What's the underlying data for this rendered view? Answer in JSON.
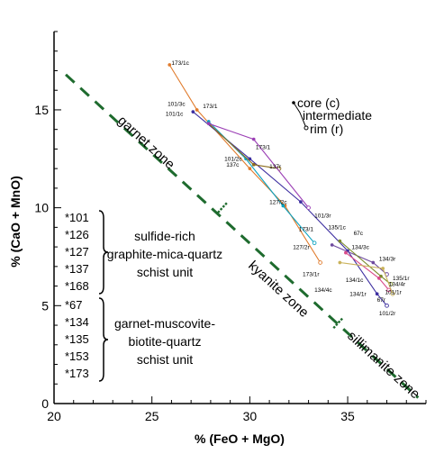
{
  "chart_data": {
    "type": "line",
    "xlabel": "% (FeO + MgO)",
    "ylabel": "% (CaO + MnO)",
    "xlim": [
      20,
      39
    ],
    "ylim": [
      0,
      19
    ],
    "x_ticks": [
      "20",
      "25",
      "30",
      "35"
    ],
    "y_ticks": [
      "0",
      "5",
      "10",
      "15"
    ],
    "grid": false,
    "legend": {
      "placement": "top-right",
      "entries": [
        "core (c)",
        "intermediate",
        "rim (r)"
      ]
    },
    "isograd": {
      "style": "dashed dark green",
      "line": [
        [
          20.6,
          16.8
        ],
        [
          38.6,
          0.3
        ]
      ],
      "tick_marks": [
        [
          28.6,
          10.0
        ],
        [
          34.5,
          4.1
        ]
      ]
    },
    "zones": [
      "garnet zone",
      "kyanite zone",
      "sillimanite zone"
    ],
    "groups": [
      {
        "samples": [
          "*101",
          "*126",
          "*127",
          "*137",
          "*168"
        ],
        "description": [
          "sulfide-rich",
          "graphite-mica-quartz",
          "schist unit"
        ]
      },
      {
        "samples": [
          "*67",
          "*134",
          "*135",
          "*153",
          "*173"
        ],
        "description": [
          "garnet-muscovite-",
          "biotite-quartz",
          "schist unit"
        ]
      }
    ],
    "series": [
      {
        "name": "173",
        "color": "#e07b2c",
        "x": [
          25.9,
          27.3,
          30.0,
          31.8,
          33.6
        ],
        "y": [
          17.3,
          15.0,
          12.0,
          10.1,
          7.2
        ]
      },
      {
        "name": "101",
        "color": "#3d2fa0",
        "x": [
          27.1,
          30.0,
          32.6,
          35.0,
          36.5,
          37.0
        ],
        "y": [
          14.9,
          12.5,
          10.3,
          7.8,
          5.6,
          5.0
        ]
      },
      {
        "name": "127",
        "color": "#0aa2c0",
        "x": [
          27.9,
          29.8,
          31.7,
          33.3
        ],
        "y": [
          14.4,
          12.5,
          10.1,
          8.2
        ]
      },
      {
        "name": "137",
        "color": "#8c6d1f",
        "x": [
          27.9,
          30.2,
          31.5
        ],
        "y": [
          14.3,
          12.2,
          12.0
        ]
      },
      {
        "name": "126",
        "color": "#9b3fb5",
        "x": [
          27.9,
          30.2,
          33.0
        ],
        "y": [
          14.3,
          13.5,
          10.0
        ]
      },
      {
        "name": "134",
        "color": "#6e4a9e",
        "x": [
          34.2,
          36.3,
          37.0
        ],
        "y": [
          8.1,
          7.2,
          6.6
        ]
      },
      {
        "name": "135",
        "color": "#7a8a2a",
        "x": [
          34.6,
          36.7,
          37.2
        ],
        "y": [
          8.3,
          6.5,
          6.1
        ]
      },
      {
        "name": "67",
        "color": "#d94b8a",
        "x": [
          34.9,
          36.6,
          37.1
        ],
        "y": [
          7.7,
          6.4,
          5.8
        ]
      },
      {
        "name": "153",
        "color": "#c9b25a",
        "x": [
          34.6,
          36.8,
          37.3
        ],
        "y": [
          7.2,
          6.9,
          5.6
        ]
      }
    ],
    "point_labels": [
      {
        "text": "173/1c",
        "x": 26.0,
        "y": 17.3
      },
      {
        "text": "101/3c",
        "x": 25.8,
        "y": 15.2
      },
      {
        "text": "173/1",
        "x": 27.6,
        "y": 15.1
      },
      {
        "text": "101/1c",
        "x": 25.7,
        "y": 14.7
      },
      {
        "text": "173/1",
        "x": 30.3,
        "y": 13.0
      },
      {
        "text": "101/2c",
        "x": 28.7,
        "y": 12.4
      },
      {
        "text": "137c",
        "x": 28.8,
        "y": 12.1
      },
      {
        "text": "137r",
        "x": 31.0,
        "y": 12.0
      },
      {
        "text": "127/2c",
        "x": 31.0,
        "y": 10.2
      },
      {
        "text": "101/3r",
        "x": 33.3,
        "y": 9.5
      },
      {
        "text": "173/1",
        "x": 32.5,
        "y": 8.8
      },
      {
        "text": "135/1c",
        "x": 34.0,
        "y": 8.9
      },
      {
        "text": "67c",
        "x": 35.3,
        "y": 8.6
      },
      {
        "text": "127/2r",
        "x": 32.2,
        "y": 7.9
      },
      {
        "text": "134/3c",
        "x": 35.2,
        "y": 7.9
      },
      {
        "text": "134/3r",
        "x": 36.6,
        "y": 7.3
      },
      {
        "text": "173/1r",
        "x": 32.7,
        "y": 6.5
      },
      {
        "text": "134/1c",
        "x": 34.9,
        "y": 6.2
      },
      {
        "text": "135/1r",
        "x": 37.3,
        "y": 6.3
      },
      {
        "text": "134/4r",
        "x": 37.1,
        "y": 6.0
      },
      {
        "text": "134/4c",
        "x": 33.3,
        "y": 5.7
      },
      {
        "text": "101/1r",
        "x": 36.9,
        "y": 5.6
      },
      {
        "text": "134/1r",
        "x": 35.1,
        "y": 5.5
      },
      {
        "text": "67r",
        "x": 36.5,
        "y": 5.2
      },
      {
        "text": "101/2r",
        "x": 36.6,
        "y": 4.5
      }
    ]
  }
}
